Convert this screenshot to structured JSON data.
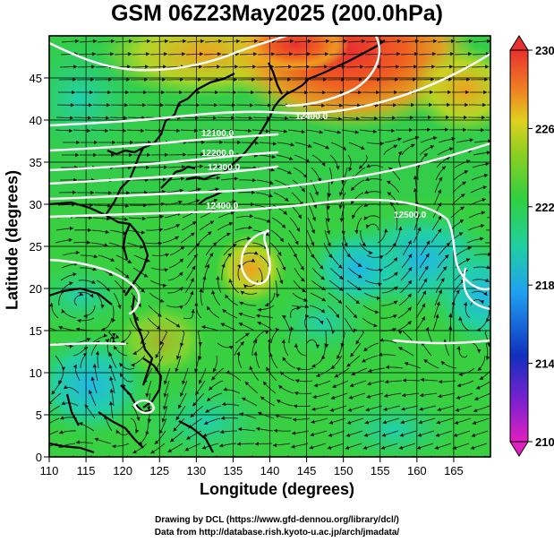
{
  "title": "GSM 06Z23May2025 (200.0hPa)",
  "x_axis_label": "Longitude (degrees)",
  "y_axis_label": "Latitude  (degrees)",
  "x_ticks": [
    "110",
    "115",
    "120",
    "125",
    "130",
    "135",
    "140",
    "145",
    "150",
    "155",
    "160",
    "165"
  ],
  "y_ticks": [
    "0",
    "5",
    "10",
    "15",
    "20",
    "25",
    "30",
    "35",
    "40",
    "45"
  ],
  "colorbar_ticks": [
    "210",
    "214",
    "218",
    "222",
    "226",
    "230"
  ],
  "contour_labels": [
    "12400.0",
    "12100.0",
    "12200.0",
    "12300.0",
    "12400.0",
    "12500.0"
  ],
  "credits": {
    "line1": "Drawing by DCL (https://www.gfd-dennou.org/library/dcl/)",
    "line2": "Data from http://database.rish.kyoto-u.ac.jp/arch/jmadata/"
  },
  "map": {
    "lon_range": [
      110,
      170
    ],
    "lat_range": [
      0,
      50
    ],
    "field": "temperature (K) at 200 hPa, shaded; geopotential height contours (white); wind streamlines (black)",
    "colorbar_range": [
      210,
      230
    ],
    "colors": {
      "min": "#e020c0",
      "low": "#1030c0",
      "cool": "#20b0f0",
      "mid": "#20d0a0",
      "warm_green": "#40d030",
      "yellow": "#d0e020",
      "orange": "#f08020",
      "max": "#e83030"
    }
  }
}
